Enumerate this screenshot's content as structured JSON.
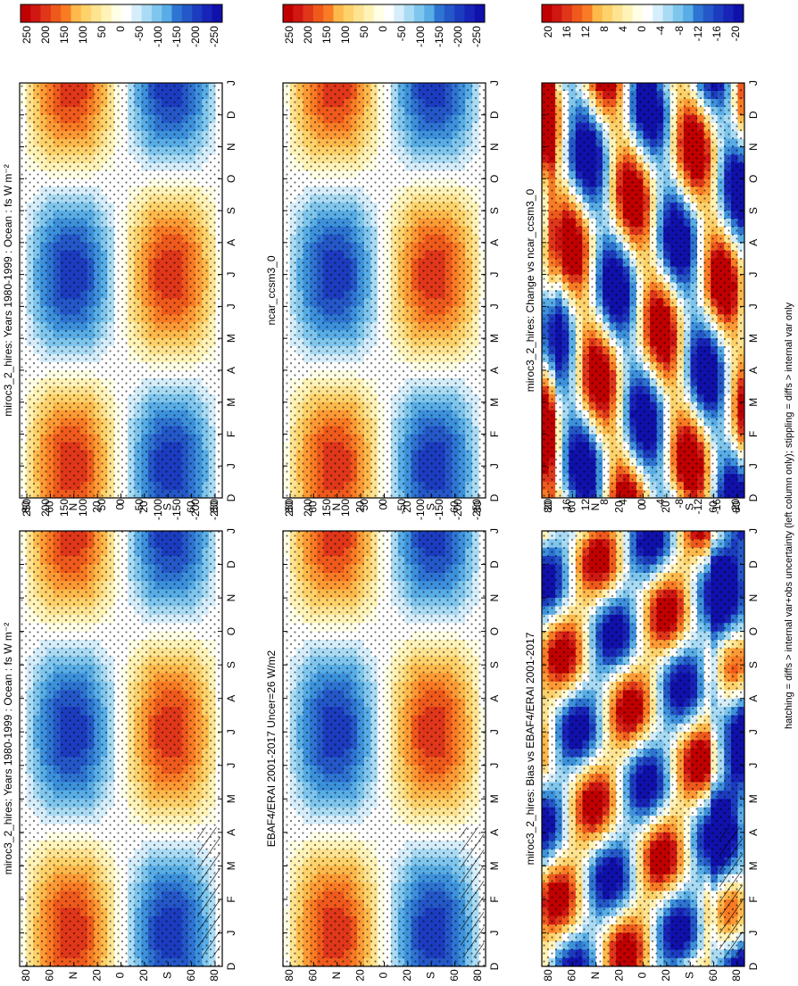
{
  "figure": {
    "footnote": "hatching = diffs > internal var+obs uncertainty (left column only); stippling = diffs > internal var only"
  },
  "chart_data": [
    {
      "type": "heatmap",
      "id": "p1",
      "title": "miroc3_2_hires: Years 1980-1999 : Ocean : fs W m⁻²",
      "x": [
        "D",
        "J",
        "F",
        "M",
        "A",
        "M",
        "J",
        "J",
        "A",
        "S",
        "O",
        "N",
        "D",
        "J"
      ],
      "y_ticks": [
        "80",
        "60",
        "N",
        "20",
        "0",
        "20",
        "S",
        "60",
        "80"
      ],
      "colorbar": {
        "labels": [
          "250",
          "200",
          "150",
          "100",
          "50",
          "0",
          "-50",
          "-100",
          "-150",
          "-200",
          "-250"
        ]
      },
      "field": "annual",
      "amplitude": 250,
      "hatched": true
    },
    {
      "type": "heatmap",
      "id": "p2",
      "title": "EBAF4/ERAI 2001-2017 Uncer=26 W/m2",
      "x": [
        "D",
        "J",
        "F",
        "M",
        "A",
        "M",
        "J",
        "J",
        "A",
        "S",
        "O",
        "N",
        "D",
        "J"
      ],
      "y_ticks": [
        "80",
        "60",
        "N",
        "20",
        "0",
        "20",
        "S",
        "60",
        "80"
      ],
      "colorbar": {
        "labels": [
          "250",
          "200",
          "150",
          "100",
          "50",
          "0",
          "-50",
          "-100",
          "-150",
          "-200",
          "-250"
        ]
      },
      "field": "annual",
      "amplitude": 250,
      "hatched": true
    },
    {
      "type": "heatmap",
      "id": "p3",
      "title": "miroc3_2_hires: Bias vs EBAF4/ERAI 2001-2017",
      "x": [
        "D",
        "J",
        "F",
        "M",
        "A",
        "M",
        "J",
        "J",
        "A",
        "S",
        "O",
        "N",
        "D",
        "J"
      ],
      "y_ticks": [
        "80",
        "60",
        "N",
        "20",
        "0",
        "20",
        "S",
        "60",
        "80"
      ],
      "colorbar": {
        "labels": [
          "20",
          "16",
          "12",
          "8",
          "4",
          "0",
          "-4",
          "-8",
          "-12",
          "-16",
          "-20"
        ]
      },
      "field": "bias",
      "amplitude": 20,
      "hatched": true
    },
    {
      "type": "heatmap",
      "id": "p4",
      "title": "miroc3_2_hires: Years 1980-1999 : Ocean : fs W m⁻²",
      "x": [
        "D",
        "J",
        "F",
        "M",
        "A",
        "M",
        "J",
        "J",
        "A",
        "S",
        "O",
        "N",
        "D",
        "J"
      ],
      "y_ticks": [
        "80",
        "60",
        "N",
        "20",
        "0",
        "20",
        "S",
        "60",
        "80"
      ],
      "colorbar": {
        "labels": [
          "250",
          "200",
          "150",
          "100",
          "50",
          "0",
          "-50",
          "-100",
          "-150",
          "-200",
          "-250"
        ]
      },
      "field": "annual",
      "amplitude": 250,
      "hatched": false
    },
    {
      "type": "heatmap",
      "id": "p5",
      "title": "ncar_ccsm3_0",
      "x": [
        "D",
        "J",
        "F",
        "M",
        "A",
        "M",
        "J",
        "J",
        "A",
        "S",
        "O",
        "N",
        "D",
        "J"
      ],
      "y_ticks": [
        "80",
        "60",
        "N",
        "20",
        "0",
        "20",
        "S",
        "60",
        "80"
      ],
      "colorbar": {
        "labels": [
          "250",
          "200",
          "150",
          "100",
          "50",
          "0",
          "-50",
          "-100",
          "-150",
          "-200",
          "-250"
        ]
      },
      "field": "annual",
      "amplitude": 250,
      "hatched": false
    },
    {
      "type": "heatmap",
      "id": "p6",
      "title": "miroc3_2_hires: Change vs ncar_ccsm3_0",
      "x": [
        "D",
        "J",
        "F",
        "M",
        "A",
        "M",
        "J",
        "J",
        "A",
        "S",
        "O",
        "N",
        "D",
        "J"
      ],
      "y_ticks": [
        "80",
        "60",
        "N",
        "20",
        "0",
        "20",
        "S",
        "60",
        "80"
      ],
      "colorbar": {
        "labels": [
          "20",
          "16",
          "12",
          "8",
          "4",
          "0",
          "-4",
          "-8",
          "-12",
          "-16",
          "-20"
        ]
      },
      "field": "change",
      "amplitude": 20,
      "hatched": false
    }
  ]
}
